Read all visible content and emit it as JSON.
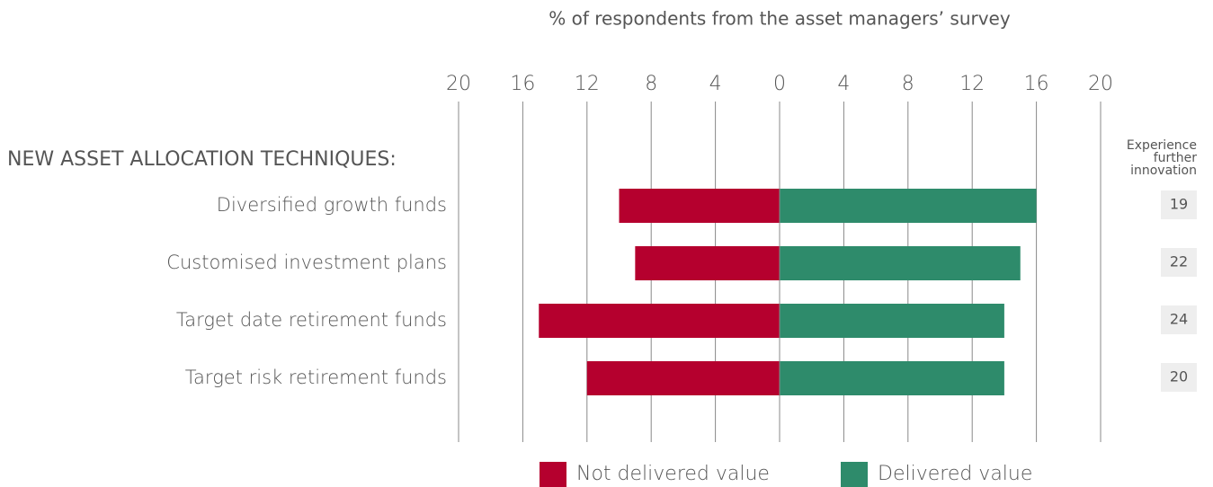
{
  "chart_data": {
    "type": "diverging_bar",
    "title": "% of respondents from the asset managers’ survey",
    "group_label": "NEW ASSET ALLOCATION TECHNIQUES:",
    "categories": [
      "Diversified growth funds",
      "Customised investment plans",
      "Target date retirement funds",
      "Target risk retirement funds"
    ],
    "series": [
      {
        "name": "Not delivered value",
        "color": "#b5002e",
        "values": [
          -10,
          -9,
          -15,
          -12
        ]
      },
      {
        "name": "Delivered value",
        "color": "#2e8b6b",
        "values": [
          16,
          15,
          14,
          14
        ]
      }
    ],
    "xlim": [
      -20,
      20
    ],
    "xticks": [
      {
        "value": -20,
        "label": "20"
      },
      {
        "value": -16,
        "label": "16"
      },
      {
        "value": -12,
        "label": "12"
      },
      {
        "value": -8,
        "label": "8"
      },
      {
        "value": -4,
        "label": "4"
      },
      0,
      4,
      8,
      12,
      16,
      20
    ],
    "grid": true,
    "side_column": {
      "title_lines": [
        "Experience",
        "further",
        "innovation"
      ],
      "values": [
        19,
        22,
        24,
        20
      ]
    }
  }
}
